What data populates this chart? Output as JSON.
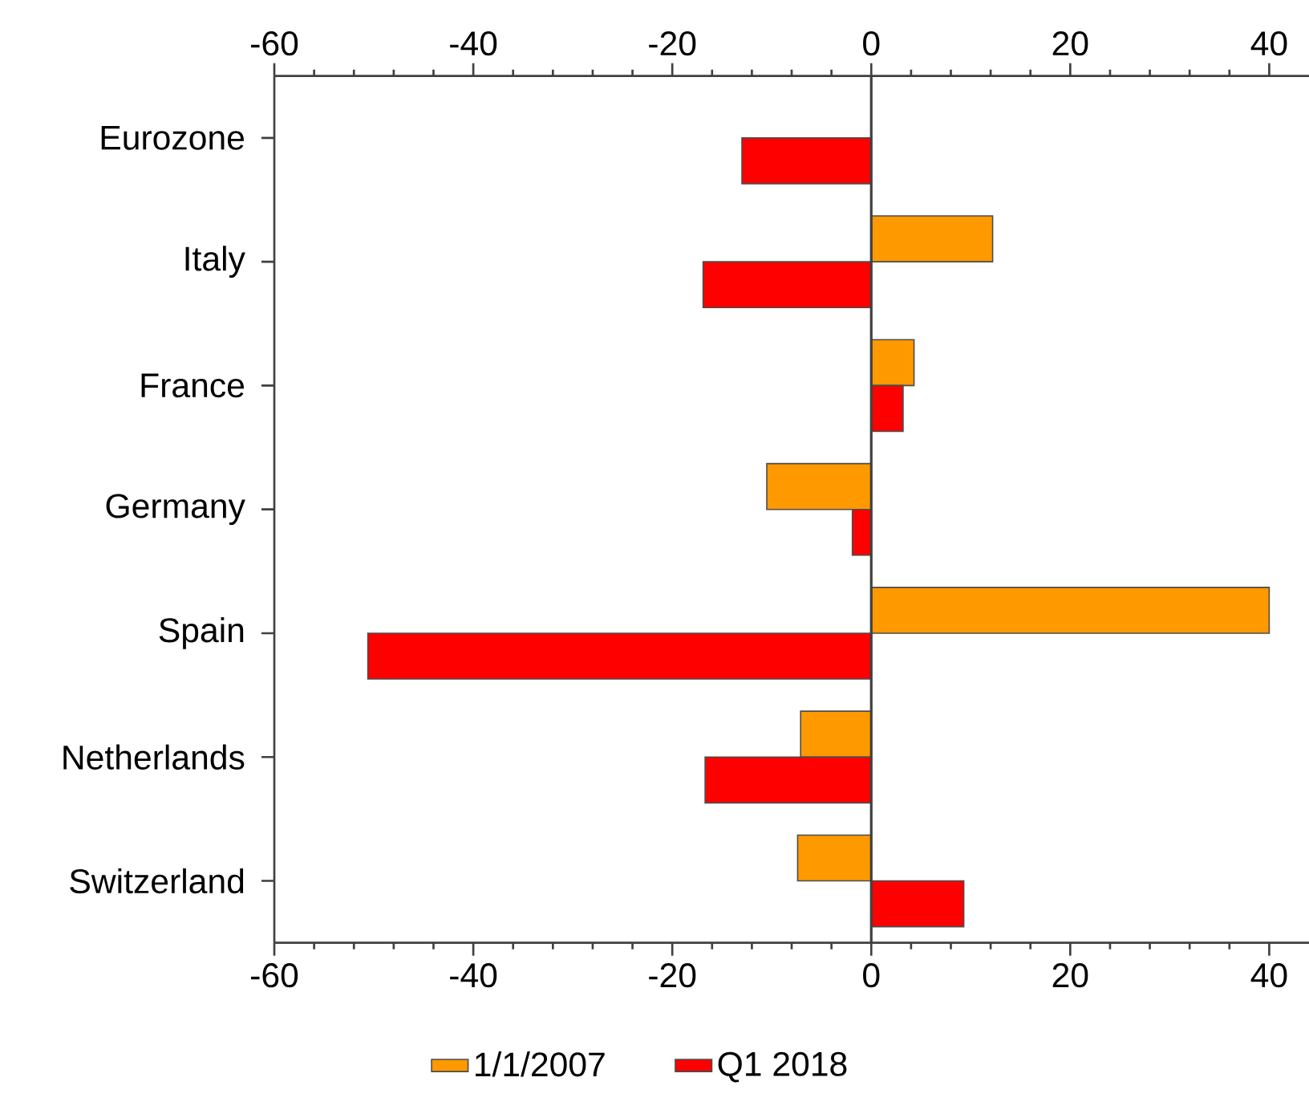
{
  "chart_data": {
    "type": "bar",
    "orientation": "horizontal",
    "categories": [
      "Eurozone",
      "Italy",
      "France",
      "Germany",
      "Spain",
      "Netherlands",
      "Switzerland"
    ],
    "series": [
      {
        "name": "1/1/2007",
        "color": "#ff9900",
        "values": [
          null,
          12.2,
          4.3,
          -10.5,
          40,
          -7.1,
          -7.4
        ]
      },
      {
        "name": "Q1 2018",
        "color": "#ff0000",
        "values": [
          -13.0,
          -16.9,
          3.2,
          -1.9,
          -50.6,
          -16.7,
          9.3
        ]
      }
    ],
    "xlim": [
      -60,
      44
    ],
    "xticks": [
      -60,
      -40,
      -20,
      0,
      20,
      40
    ],
    "x2lim": [
      -60,
      44
    ],
    "x2ticks": [
      -60,
      -40,
      -20,
      0,
      20,
      40
    ],
    "legend": "bottom"
  }
}
